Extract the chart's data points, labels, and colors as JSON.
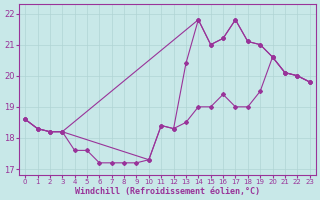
{
  "xlabel": "Windchill (Refroidissement éolien,°C)",
  "xlim": [
    -0.5,
    23.5
  ],
  "ylim": [
    16.8,
    22.3
  ],
  "xticks": [
    0,
    1,
    2,
    3,
    4,
    5,
    6,
    7,
    8,
    9,
    10,
    11,
    12,
    13,
    14,
    15,
    16,
    17,
    18,
    19,
    20,
    21,
    22,
    23
  ],
  "yticks": [
    17,
    18,
    19,
    20,
    21,
    22
  ],
  "bg_color": "#c8e8e8",
  "line_color": "#993399",
  "grid_color": "#b0d4d4",
  "line1_x": [
    0,
    1,
    2,
    3,
    4,
    5,
    6,
    7,
    8,
    9,
    10,
    11,
    12,
    13,
    14,
    15,
    16,
    17,
    18,
    19,
    20,
    21,
    22,
    23
  ],
  "line1_y": [
    18.6,
    18.3,
    18.2,
    18.2,
    17.6,
    17.6,
    17.2,
    17.2,
    17.2,
    17.2,
    17.3,
    18.4,
    18.3,
    18.5,
    19.0,
    19.0,
    19.4,
    19.0,
    19.0,
    19.5,
    20.6,
    20.1,
    20.0,
    19.8
  ],
  "line2_x": [
    0,
    1,
    2,
    3,
    14,
    15,
    16,
    17,
    18,
    19,
    20,
    21,
    22,
    23
  ],
  "line2_y": [
    18.6,
    18.3,
    18.2,
    18.2,
    21.8,
    21.0,
    21.2,
    21.8,
    21.1,
    21.0,
    20.6,
    20.1,
    20.0,
    19.8
  ],
  "line3_x": [
    0,
    1,
    2,
    3,
    10,
    11,
    12,
    13,
    14,
    15,
    16,
    17,
    18,
    19,
    20,
    21,
    22,
    23
  ],
  "line3_y": [
    18.6,
    18.3,
    18.2,
    18.2,
    17.3,
    18.4,
    18.3,
    20.4,
    21.8,
    21.0,
    21.2,
    21.8,
    21.1,
    21.0,
    20.6,
    20.1,
    20.0,
    19.8
  ]
}
